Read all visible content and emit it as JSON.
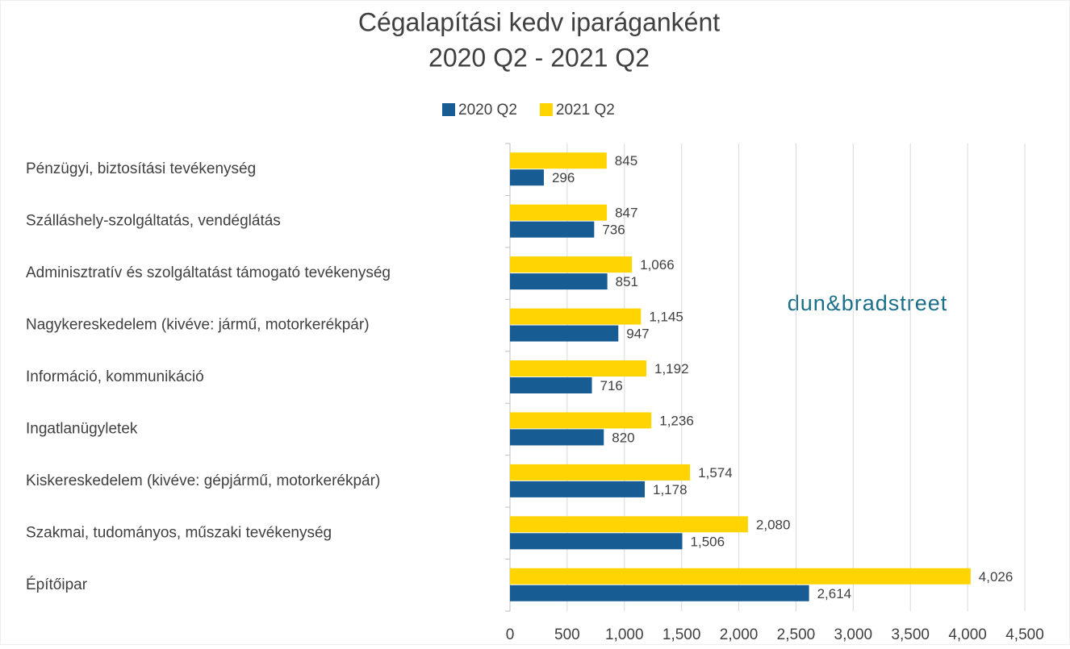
{
  "chart_data": {
    "type": "hbar",
    "title": "Cégalapítási kedv iparáganként",
    "subtitle": "2020 Q2 - 2021 Q2",
    "watermark": "dun&bradstreet",
    "categories": [
      "Pénzügyi, biztosítási tevékenység",
      "Szálláshely-szolgáltatás, vendéglátás",
      "Adminisztratív és szolgáltatást támogató tevékenység",
      "Nagykereskedelem (kivéve: jármű, motorkerékpár)",
      "Információ, kommunikáció",
      "Ingatlanügyletek",
      "Kiskereskedelem (kivéve: gépjármű, motorkerékpár)",
      "Szakmai, tudományos, műszaki tevékenység",
      "Építőipar"
    ],
    "series": [
      {
        "name": "2020 Q2",
        "color": "#175d93",
        "values": [
          296,
          736,
          851,
          947,
          716,
          820,
          1178,
          1506,
          2614
        ],
        "value_labels": [
          "296",
          "736",
          "851",
          "947",
          "716",
          "820",
          "1,178",
          "1,506",
          "2,614"
        ]
      },
      {
        "name": "2021 Q2",
        "color": "#ffd400",
        "values": [
          845,
          847,
          1066,
          1145,
          1192,
          1236,
          1574,
          2080,
          4026
        ],
        "value_labels": [
          "845",
          "847",
          "1,066",
          "1,145",
          "1,192",
          "1,236",
          "1,574",
          "2,080",
          "4,026"
        ]
      }
    ],
    "xlim": [
      0,
      4500
    ],
    "xticks": [
      0,
      500,
      {
        "value": 1000,
        "label": "1,000"
      },
      {
        "value": 1500,
        "label": "1,500"
      },
      {
        "value": 2000,
        "label": "2,000"
      },
      {
        "value": 2500,
        "label": "2,500"
      },
      {
        "value": 3000,
        "label": "3,000"
      },
      {
        "value": 3500,
        "label": "3,500"
      },
      {
        "value": 4000,
        "label": "4,000"
      },
      {
        "value": 4500,
        "label": "4,500"
      }
    ],
    "grid": true,
    "legend": "top"
  }
}
